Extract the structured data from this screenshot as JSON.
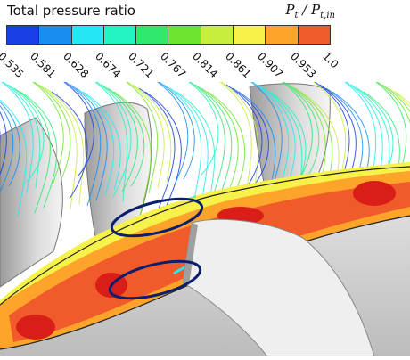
{
  "legend": {
    "title": "Total pressure ratio",
    "formula": "P_t / P_t,in",
    "colors": [
      "#1a3ee6",
      "#1a8df0",
      "#24e6f4",
      "#23f2c2",
      "#2fe86e",
      "#6ee431",
      "#c5ef3c",
      "#f6f24a",
      "#ffa42a",
      "#f15a2a"
    ],
    "ticks": [
      "0.535",
      "0.581",
      "0.628",
      "0.674",
      "0.721",
      "0.767",
      "0.814",
      "0.861",
      "0.907",
      "0.953",
      "1.0"
    ]
  },
  "scene": {
    "description_icons": [
      "streamline-icon",
      "blade-icon",
      "highlight-ellipse-icon"
    ],
    "highlight_color": "#0b1f6b"
  }
}
